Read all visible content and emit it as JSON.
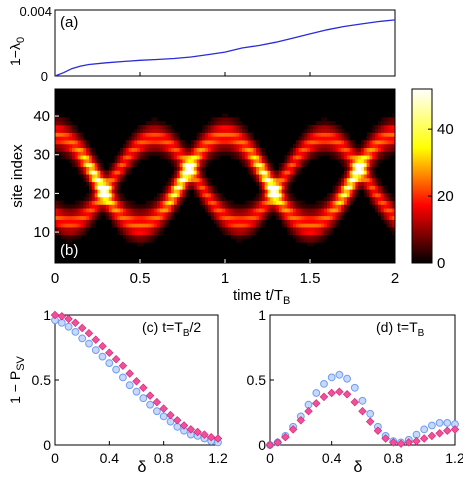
{
  "chart_data": [
    {
      "panel": "(a)",
      "type": "line",
      "title": "",
      "ylabel_base": "1−λ",
      "ylabel_sub": "0",
      "ylim": [
        0,
        0.004
      ],
      "yticks": [
        "0",
        "0.004"
      ],
      "xlim": [
        0,
        2
      ],
      "series": [
        {
          "color": "#2b2bd9",
          "x": [
            0,
            0.05,
            0.1,
            0.15,
            0.2,
            0.3,
            0.4,
            0.5,
            0.6,
            0.7,
            0.8,
            0.9,
            1.0,
            1.1,
            1.2,
            1.3,
            1.4,
            1.5,
            1.6,
            1.7,
            1.8,
            1.9,
            2.0
          ],
          "y": [
            0,
            0.0002,
            0.00045,
            0.0006,
            0.0007,
            0.0008,
            0.00088,
            0.00095,
            0.001,
            0.00106,
            0.00115,
            0.0013,
            0.00145,
            0.0017,
            0.00185,
            0.00205,
            0.0023,
            0.00255,
            0.0028,
            0.003,
            0.00315,
            0.0033,
            0.0034
          ]
        }
      ]
    },
    {
      "panel": "(b)",
      "type": "heatmap",
      "title": "",
      "ylabel": "site index",
      "xlabel_base": "time t/T",
      "xlabel_sub": "B",
      "xlim": [
        0,
        2
      ],
      "ylim": [
        2,
        47
      ],
      "xticks": [
        "0",
        "0.5",
        "1",
        "1.5",
        "2"
      ],
      "yticks": [
        "10",
        "20",
        "30",
        "40"
      ],
      "colorbar": {
        "range": [
          0,
          52
        ],
        "ticks": [
          "0",
          "20",
          "40"
        ]
      },
      "description_values": {
        "center_site": 24,
        "amplitude_sites": 14,
        "period_TB": 1
      }
    },
    {
      "panel": "(c)",
      "type": "scatter",
      "title": "",
      "label_base": "(c) t=T",
      "label_sub": "B",
      "label_tail": "/2",
      "ylabel_base": "1 − P",
      "ylabel_sub": "SV",
      "xlabel": "δ",
      "xlim": [
        0,
        1.2
      ],
      "ylim": [
        0,
        1
      ],
      "xticks": [
        "0",
        "0.4",
        "0.8",
        "1.2"
      ],
      "yticks": [
        "0",
        "0.5",
        "1"
      ],
      "x": [
        0,
        0.05,
        0.1,
        0.15,
        0.2,
        0.25,
        0.3,
        0.35,
        0.4,
        0.45,
        0.5,
        0.55,
        0.6,
        0.65,
        0.7,
        0.75,
        0.8,
        0.85,
        0.9,
        0.95,
        1.0,
        1.05,
        1.1,
        1.15,
        1.2
      ],
      "series": [
        {
          "color": "#f0509a",
          "marker": "diamond",
          "y": [
            1.0,
            0.99,
            0.97,
            0.94,
            0.9,
            0.86,
            0.81,
            0.76,
            0.71,
            0.66,
            0.61,
            0.55,
            0.49,
            0.44,
            0.38,
            0.33,
            0.28,
            0.23,
            0.19,
            0.15,
            0.12,
            0.1,
            0.08,
            0.06,
            0.05
          ]
        },
        {
          "color": "#6f9df0",
          "marker": "circle",
          "y": [
            0.96,
            0.94,
            0.91,
            0.87,
            0.82,
            0.78,
            0.73,
            0.68,
            0.63,
            0.58,
            0.52,
            0.46,
            0.41,
            0.36,
            0.31,
            0.26,
            0.22,
            0.18,
            0.14,
            0.11,
            0.08,
            0.07,
            0.05,
            0.03,
            0.02
          ]
        }
      ]
    },
    {
      "panel": "(d)",
      "type": "scatter",
      "title": "",
      "label_base": "(d) t=T",
      "label_sub": "B",
      "label_tail": "",
      "xlabel": "δ",
      "xlim": [
        0,
        1.2
      ],
      "ylim": [
        0,
        1
      ],
      "xticks": [
        "0",
        "0.4",
        "0.8",
        "1.2"
      ],
      "yticks": [
        "0",
        "0.5",
        "1"
      ],
      "x": [
        0,
        0.05,
        0.1,
        0.15,
        0.2,
        0.25,
        0.3,
        0.35,
        0.4,
        0.45,
        0.5,
        0.55,
        0.6,
        0.65,
        0.7,
        0.75,
        0.8,
        0.85,
        0.9,
        0.95,
        1.0,
        1.05,
        1.1,
        1.15,
        1.2
      ],
      "series": [
        {
          "color": "#f0509a",
          "marker": "diamond",
          "y": [
            0.0,
            0.02,
            0.06,
            0.12,
            0.19,
            0.26,
            0.32,
            0.37,
            0.4,
            0.41,
            0.39,
            0.33,
            0.26,
            0.18,
            0.11,
            0.05,
            0.02,
            0.01,
            0.02,
            0.03,
            0.05,
            0.07,
            0.09,
            0.11,
            0.12
          ]
        },
        {
          "color": "#6f9df0",
          "marker": "circle",
          "y": [
            0.0,
            0.02,
            0.07,
            0.14,
            0.22,
            0.31,
            0.4,
            0.47,
            0.52,
            0.54,
            0.51,
            0.44,
            0.34,
            0.24,
            0.14,
            0.07,
            0.03,
            0.02,
            0.04,
            0.08,
            0.12,
            0.15,
            0.17,
            0.17,
            0.16
          ]
        }
      ]
    }
  ]
}
